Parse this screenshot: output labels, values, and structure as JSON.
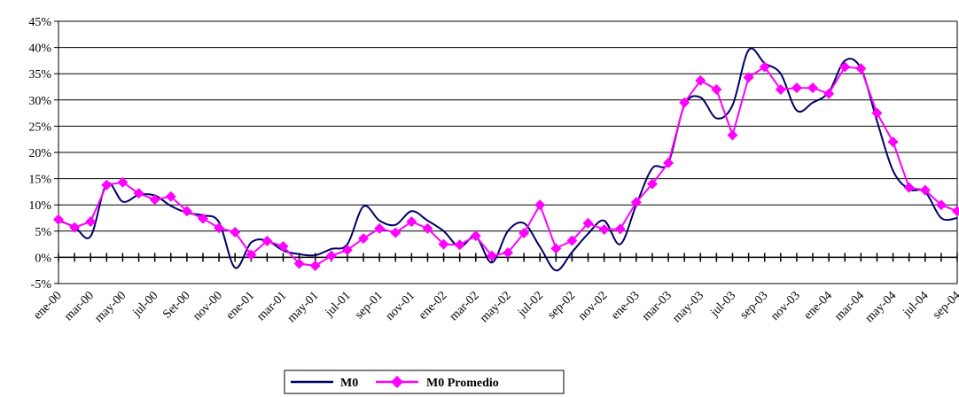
{
  "chart_data": {
    "type": "line",
    "title": "",
    "xlabel": "",
    "ylabel": "",
    "ylim": [
      -5,
      45
    ],
    "yticks": [
      -5,
      0,
      5,
      10,
      15,
      20,
      25,
      30,
      35,
      40,
      45
    ],
    "ytick_labels": [
      "-5%",
      "0%",
      "5%",
      "10%",
      "15%",
      "20%",
      "25%",
      "30%",
      "35%",
      "40%",
      "45%"
    ],
    "grid": "horizontal",
    "legend": "bottom",
    "x_count": 57,
    "xtick_labels": [
      "ene-00",
      "mar-00",
      "may-00",
      "jul-00",
      "Set-00",
      "nov-00",
      "ene-01",
      "mar-01",
      "may-01",
      "jul-01",
      "sep-01",
      "nov-01",
      "ene-02",
      "mar-02",
      "may-02",
      "jul-02",
      "sep-02",
      "nov-02",
      "ene-03",
      "mar-03",
      "may-03",
      "jul-03",
      "sep-03",
      "nov-03",
      "ene-04",
      "mar-04",
      "may-04",
      "jul-04",
      "sep-04"
    ],
    "series": [
      {
        "name": "M0",
        "color": "#000066",
        "marker": "none",
        "values": [
          7.0,
          5.8,
          4.0,
          14.0,
          10.6,
          11.9,
          11.8,
          9.8,
          8.5,
          8.0,
          6.7,
          -2.0,
          2.8,
          3.2,
          1.3,
          0.6,
          0.4,
          1.6,
          2.5,
          9.7,
          7.0,
          6.2,
          8.8,
          7.0,
          5.0,
          2.0,
          4.0,
          -1.0,
          5.0,
          6.5,
          2.0,
          -2.5,
          1.0,
          4.5,
          7.0,
          2.5,
          10.0,
          17.0,
          18.0,
          29.0,
          30.5,
          26.5,
          29.0,
          39.5,
          37.0,
          35.0,
          28.0,
          29.5,
          31.5,
          37.5,
          36.0,
          26.0,
          16.5,
          13.0,
          12.5,
          7.5,
          7.5
        ]
      },
      {
        "name": "M0 Promedio",
        "color": "#ff00ff",
        "marker": "diamond",
        "values": [
          7.2,
          5.7,
          6.8,
          13.8,
          14.3,
          12.2,
          11.0,
          11.6,
          8.8,
          7.4,
          5.6,
          4.8,
          0.5,
          3.1,
          2.1,
          -1.2,
          -1.6,
          0.3,
          1.4,
          3.6,
          5.5,
          4.7,
          6.8,
          5.5,
          2.5,
          2.4,
          4.1,
          0.3,
          0.9,
          4.6,
          10.0,
          1.7,
          3.2,
          6.5,
          5.3,
          5.4,
          10.5,
          14.0,
          18.0,
          29.5,
          33.7,
          32.0,
          23.3,
          34.3,
          36.3,
          32.0,
          32.3,
          32.3,
          31.2,
          36.3,
          36.0,
          27.5,
          22.0,
          13.3,
          12.8,
          10.0,
          8.8
        ]
      }
    ]
  }
}
